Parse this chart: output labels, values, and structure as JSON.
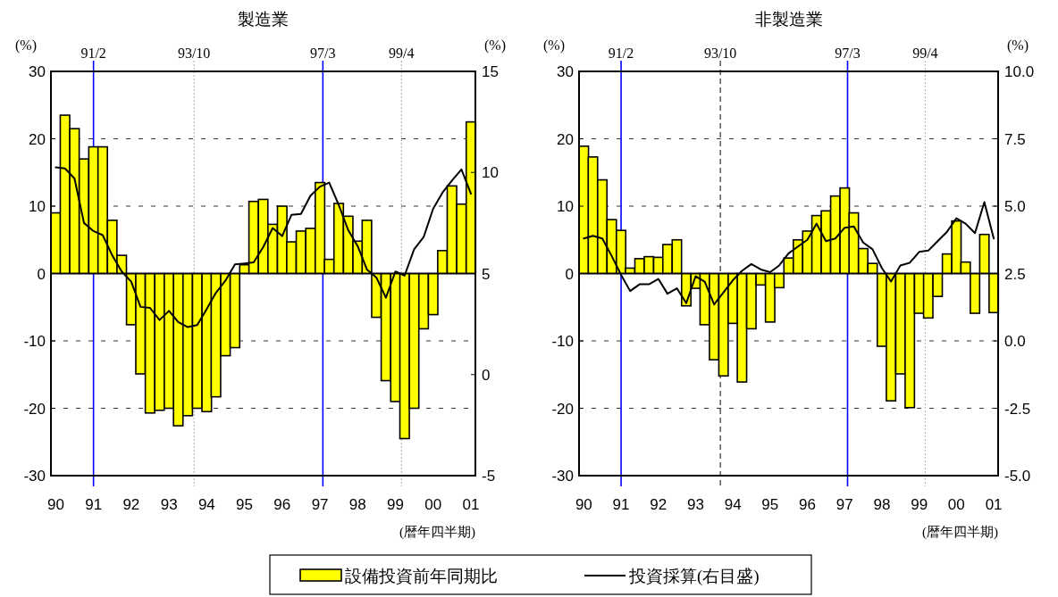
{
  "chart_data": [
    {
      "type": "bar",
      "title": "製造業",
      "xlabel": "(暦年四半期)",
      "ylabel": "(%)",
      "y2label": "(%)",
      "x": [
        "1990-02",
        "1990-05",
        "1990-08",
        "1990-11",
        "1991-02",
        "1991-05",
        "1991-08",
        "1991-11",
        "1992-02",
        "1992-05",
        "1992-08",
        "1992-11",
        "1993-02",
        "1993-05",
        "1993-08",
        "1993-11",
        "1994-02",
        "1994-05",
        "1994-08",
        "1994-11",
        "1995-02",
        "1995-05",
        "1995-08",
        "1995-11",
        "1996-02",
        "1996-05",
        "1996-08",
        "1996-11",
        "1997-02",
        "1997-05",
        "1997-08",
        "1997-11",
        "1998-02",
        "1998-05",
        "1998-08",
        "1998-11",
        "1999-02",
        "1999-05",
        "1999-08",
        "1999-11",
        "2000-02",
        "2000-05",
        "2000-08",
        "2000-11",
        "2001-02"
      ],
      "series": [
        {
          "name": "設備投資前年同期比",
          "color": "#ffff00",
          "values": [
            9.0,
            23.5,
            21.5,
            17.0,
            18.8,
            18.8,
            7.9,
            2.7,
            -7.6,
            -14.9,
            -20.7,
            -20.3,
            -20.0,
            -22.6,
            -21.1,
            -20.0,
            -20.5,
            -18.3,
            -12.2,
            -11.0,
            1.3,
            10.7,
            11.0,
            7.3,
            10.0,
            4.7,
            6.3,
            6.7,
            13.5,
            2.1,
            10.4,
            8.5,
            4.8,
            7.9,
            -6.5,
            -15.9,
            -19.0,
            -24.5,
            -20.0,
            -8.2,
            -6.1,
            3.4,
            13.0,
            10.3,
            22.5
          ]
        },
        {
          "name": "投資採算(右目盛)",
          "type": "line",
          "axis": "y2",
          "color": "#000000",
          "values": [
            10.25,
            10.2,
            9.7,
            7.5,
            7.1,
            6.9,
            5.9,
            5.1,
            4.6,
            3.35,
            3.3,
            2.7,
            3.15,
            2.6,
            2.35,
            2.45,
            3.25,
            4.05,
            4.65,
            5.45,
            5.5,
            5.55,
            6.3,
            7.25,
            6.85,
            7.9,
            7.95,
            8.85,
            9.3,
            9.5,
            8.4,
            7.15,
            6.35,
            5.2,
            4.8,
            3.8,
            5.1,
            4.9,
            6.2,
            6.8,
            8.2,
            9.0,
            9.6,
            10.15,
            8.95
          ]
        }
      ],
      "xlim": [
        "1989-12-16",
        "2001-03-16"
      ],
      "xticks": [
        {
          "value": "1990-02",
          "label": "90"
        },
        {
          "value": "1991-02",
          "label": "91"
        },
        {
          "value": "1992-02",
          "label": "92"
        },
        {
          "value": "1993-02",
          "label": "93"
        },
        {
          "value": "1994-02",
          "label": "94"
        },
        {
          "value": "1995-02",
          "label": "95"
        },
        {
          "value": "1996-02",
          "label": "96"
        },
        {
          "value": "1997-02",
          "label": "97"
        },
        {
          "value": "1998-02",
          "label": "98"
        },
        {
          "value": "1999-02",
          "label": "99"
        },
        {
          "value": "2000-02",
          "label": "00"
        },
        {
          "value": "2001-02",
          "label": "01"
        }
      ],
      "ylim": [
        -30,
        30
      ],
      "yticks": [
        -30,
        -20,
        -10,
        0,
        10,
        20,
        30
      ],
      "y2lim": [
        -5,
        15
      ],
      "y2ticks": [
        -5,
        0,
        5,
        10,
        15
      ],
      "grid": "y",
      "legend": "bottom",
      "ref_lines": [
        {
          "axis": "x",
          "value": "1991-02",
          "label": "91/2",
          "color": "#0000ff",
          "line_style": "solid"
        },
        {
          "axis": "x",
          "value": "1993-10",
          "label": "93/10",
          "color": "#aaaaaa",
          "line_style": "dotted"
        },
        {
          "axis": "x",
          "value": "1997-03",
          "label": "97/3",
          "color": "#0000ff",
          "line_style": "solid"
        },
        {
          "axis": "x",
          "value": "1999-04",
          "label": "99/4",
          "color": "#aaaaaa",
          "line_style": "dotted"
        }
      ]
    },
    {
      "type": "bar",
      "title": "非製造業",
      "xlabel": "(暦年四半期)",
      "ylabel": "(%)",
      "y2label": "(%)",
      "x": [
        "1990-02",
        "1990-05",
        "1990-08",
        "1990-11",
        "1991-02",
        "1991-05",
        "1991-08",
        "1991-11",
        "1992-02",
        "1992-05",
        "1992-08",
        "1992-11",
        "1993-02",
        "1993-05",
        "1993-08",
        "1993-11",
        "1994-02",
        "1994-05",
        "1994-08",
        "1994-11",
        "1995-02",
        "1995-05",
        "1995-08",
        "1995-11",
        "1996-02",
        "1996-05",
        "1996-08",
        "1996-11",
        "1997-02",
        "1997-05",
        "1997-08",
        "1997-11",
        "1998-02",
        "1998-05",
        "1998-08",
        "1998-11",
        "1999-02",
        "1999-05",
        "1999-08",
        "1999-11",
        "2000-02",
        "2000-05",
        "2000-08",
        "2000-11",
        "2001-02"
      ],
      "series": [
        {
          "color": "#ffff00",
          "values": [
            18.9,
            17.3,
            13.9,
            8.0,
            6.4,
            0.8,
            2.2,
            2.5,
            2.4,
            4.3,
            5.0,
            -4.8,
            -2.2,
            -7.6,
            -12.8,
            -15.2,
            -7.4,
            -16.1,
            -8.2,
            -1.7,
            -7.2,
            -2.1,
            2.3,
            5.0,
            6.3,
            8.6,
            9.3,
            11.5,
            12.7,
            9.0,
            3.7,
            1.5,
            -10.8,
            -18.9,
            -14.9,
            -19.9,
            -5.9,
            -6.6,
            -3.4,
            2.9,
            7.8,
            1.7,
            -5.9,
            5.8,
            -5.8
          ]
        },
        {
          "type": "line",
          "axis": "y2",
          "color": "#000000",
          "values": [
            3.8,
            3.9,
            3.8,
            3.15,
            2.45,
            1.85,
            2.1,
            2.1,
            2.3,
            1.75,
            1.95,
            1.4,
            2.4,
            2.2,
            1.35,
            1.8,
            2.25,
            2.6,
            2.85,
            2.65,
            2.55,
            2.8,
            3.25,
            3.5,
            3.75,
            4.35,
            3.7,
            3.8,
            4.2,
            4.25,
            3.65,
            3.4,
            2.7,
            2.2,
            2.8,
            2.9,
            3.3,
            3.35,
            3.7,
            4.05,
            4.55,
            4.35,
            4.0,
            5.15,
            3.8
          ]
        }
      ],
      "xlim": [
        "1989-12-16",
        "2001-03-16"
      ],
      "xticks": [
        {
          "value": "1990-02",
          "label": "90"
        },
        {
          "value": "1991-02",
          "label": "91"
        },
        {
          "value": "1992-02",
          "label": "92"
        },
        {
          "value": "1993-02",
          "label": "93"
        },
        {
          "value": "1994-02",
          "label": "94"
        },
        {
          "value": "1995-02",
          "label": "95"
        },
        {
          "value": "1996-02",
          "label": "96"
        },
        {
          "value": "1997-02",
          "label": "97"
        },
        {
          "value": "1998-02",
          "label": "98"
        },
        {
          "value": "1999-02",
          "label": "99"
        },
        {
          "value": "2000-02",
          "label": "00"
        },
        {
          "value": "2001-02",
          "label": "01"
        }
      ],
      "ylim": [
        -30,
        30
      ],
      "yticks": [
        -30,
        -20,
        -10,
        0,
        10,
        20,
        30
      ],
      "y2lim": [
        -5,
        10
      ],
      "y2ticks": [
        {
          "value": -5,
          "label": "-5.0"
        },
        {
          "value": -2.5,
          "label": "-2.5"
        },
        {
          "value": 0,
          "label": "0.0"
        },
        {
          "value": 2.5,
          "label": "2.5"
        },
        {
          "value": 5,
          "label": "5.0"
        },
        {
          "value": 7.5,
          "label": "7.5"
        },
        {
          "value": 10,
          "label": "10.0"
        }
      ],
      "grid": "y",
      "ref_lines": [
        {
          "axis": "x",
          "value": "1991-02",
          "label": "91/2",
          "color": "#0000ff",
          "line_style": "solid"
        },
        {
          "axis": "x",
          "value": "1993-10",
          "label": "93/10",
          "color": "#000000",
          "line_style": "dashed"
        },
        {
          "axis": "x",
          "value": "1997-03",
          "label": "97/3",
          "color": "#0000ff",
          "line_style": "solid"
        },
        {
          "axis": "x",
          "value": "1999-04",
          "label": "99/4",
          "color": "#aaaaaa",
          "line_style": "dotted"
        }
      ]
    }
  ]
}
